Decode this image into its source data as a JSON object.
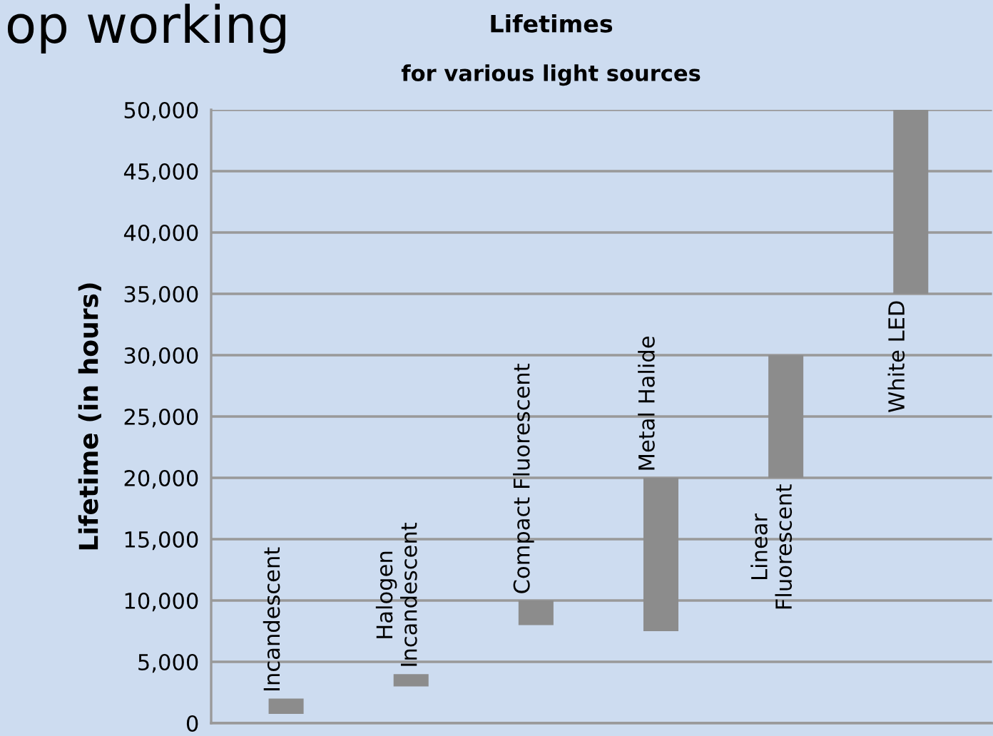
{
  "chart_data": {
    "type": "bar",
    "title": "Lifetimes",
    "subtitle": "for various light sources",
    "ylabel": "Lifetime (in hours)",
    "annotations": [
      "op working"
    ],
    "categories": [
      "Incandescent",
      "Halogen\nIncandescent",
      "Compact Fluorescent",
      "Metal Halide",
      "Linear\nFluorescent",
      "White LED"
    ],
    "base": [
      750,
      3000,
      8000,
      7500,
      20000,
      35000
    ],
    "values": [
      1250,
      1000,
      2000,
      12500,
      10000,
      15000
    ],
    "color": "#8c8c8c",
    "ylim": [
      0,
      50000
    ],
    "yticks": [
      {
        "value": 0,
        "label": "0"
      },
      {
        "value": 5000,
        "label": "5,000"
      },
      {
        "value": 10000,
        "label": "10,000"
      },
      {
        "value": 15000,
        "label": "15,000"
      },
      {
        "value": 20000,
        "label": "20,000"
      },
      {
        "value": 25000,
        "label": "25,000"
      },
      {
        "value": 30000,
        "label": "30,000"
      },
      {
        "value": 35000,
        "label": "35,000"
      },
      {
        "value": 40000,
        "label": "40,000"
      },
      {
        "value": 45000,
        "label": "45,000"
      },
      {
        "value": 50000,
        "label": "50,000"
      }
    ],
    "grid": "y",
    "legend": false
  }
}
